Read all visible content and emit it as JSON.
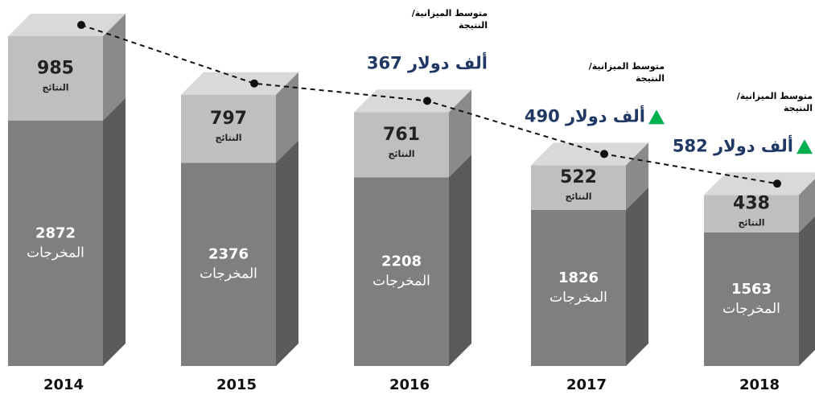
{
  "chart_data": {
    "type": "stacked-bar-3d",
    "categories": [
      "2014",
      "2015",
      "2016",
      "2017",
      "2018"
    ],
    "series": [
      {
        "name": "المخرجات",
        "color": "#7f7f7f",
        "values": [
          2872,
          2376,
          2208,
          1826,
          1563
        ]
      },
      {
        "name": "النتائج",
        "color": "#bfbfbf",
        "values": [
          985,
          797,
          761,
          522,
          438
        ]
      }
    ],
    "annotation_series": {
      "name": "متوسط الميزانية/ النتيجة",
      "color": "#1f3864",
      "marker_color": "#00b050",
      "values": [
        null,
        null,
        367,
        490,
        582
      ],
      "value_labels": [
        null,
        null,
        "367 ألف دولار",
        "490 ألف دولار",
        "582 ألف دولار"
      ]
    },
    "ylim": [
      0,
      3857
    ]
  }
}
